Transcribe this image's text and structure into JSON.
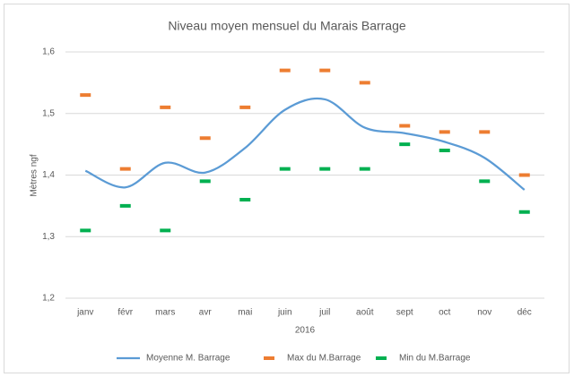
{
  "chart_data": {
    "type": "line",
    "title": "Niveau moyen mensuel du Marais Barrage",
    "x_label": "2016",
    "y_label": "Mètres ngf",
    "categories": [
      "janv",
      "févr",
      "mars",
      "avr",
      "mai",
      "juin",
      "juil",
      "août",
      "sept",
      "oct",
      "nov",
      "déc"
    ],
    "series": [
      {
        "name": "Moyenne M. Barrage",
        "color": "#5b9bd5",
        "line": true,
        "marker": "none",
        "values": [
          1.407,
          1.38,
          1.42,
          1.404,
          1.444,
          1.506,
          1.523,
          1.477,
          1.468,
          1.454,
          1.428,
          1.376
        ]
      },
      {
        "name": "Max du M.Barrage",
        "color": "#ed7d31",
        "line": false,
        "marker": "dash",
        "values": [
          1.53,
          1.41,
          1.51,
          1.46,
          1.51,
          1.57,
          1.57,
          1.55,
          1.48,
          1.47,
          1.47,
          1.4
        ]
      },
      {
        "name": "Min du M.Barrage",
        "color": "#00b050",
        "line": false,
        "marker": "dash",
        "values": [
          1.31,
          1.35,
          1.31,
          1.39,
          1.36,
          1.41,
          1.41,
          1.41,
          1.45,
          1.44,
          1.39,
          1.34
        ]
      }
    ],
    "smooth": true,
    "ylim": [
      1.2,
      1.6
    ],
    "yticks": [
      {
        "value": 1.2,
        "label": "1,2"
      },
      {
        "value": 1.3,
        "label": "1,3"
      },
      {
        "value": 1.4,
        "label": "1,4"
      },
      {
        "value": 1.5,
        "label": "1,5"
      },
      {
        "value": 1.6,
        "label": "1,6"
      }
    ],
    "grid": true,
    "legend": "bottom"
  }
}
